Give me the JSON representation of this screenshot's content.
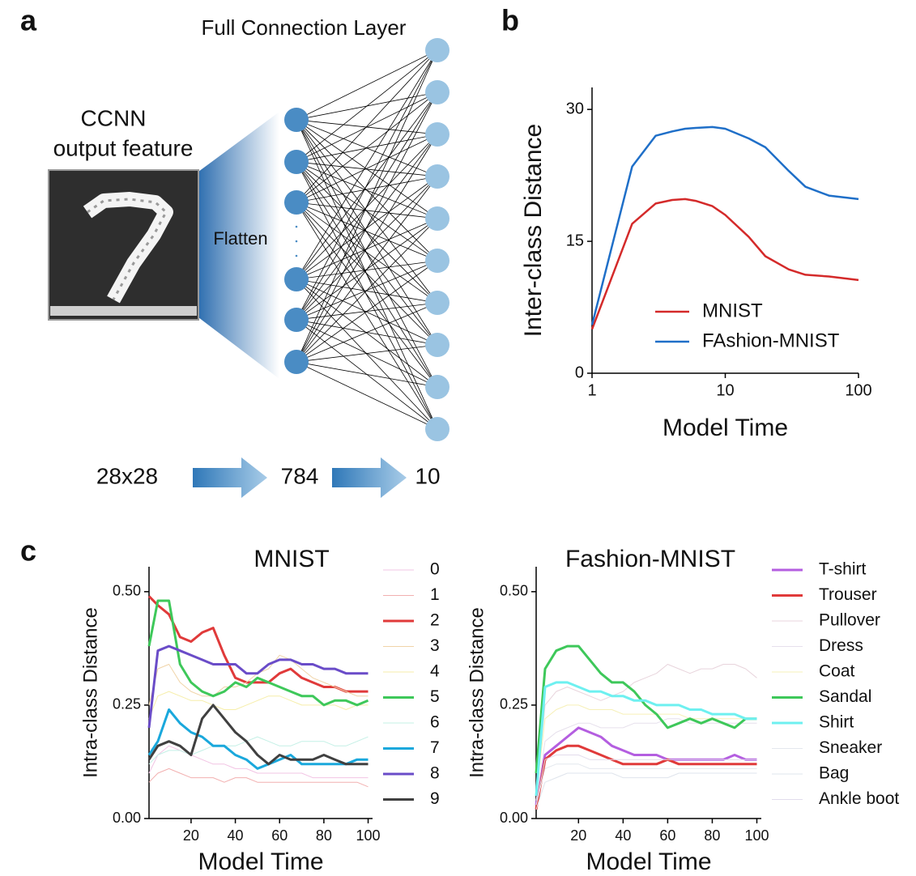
{
  "panels": [
    "a",
    "b",
    "c"
  ],
  "diagram": {
    "title": "Full Connection Layer",
    "input_label": [
      "CCNN",
      "output feature"
    ],
    "flatten": "Flatten",
    "sizes": [
      "28x28",
      "784",
      "10"
    ]
  },
  "chart_data": [
    {
      "type": "line",
      "xscale": "log",
      "x_label": "Model Time",
      "y_label": "Inter-class Distance",
      "legend": "lower right",
      "x": [
        1,
        2,
        3,
        4,
        5,
        6,
        8,
        10,
        15,
        20,
        30,
        40,
        60,
        100
      ],
      "xlim": [
        1,
        100
      ],
      "xticks": [
        1,
        10,
        100
      ],
      "ylim": [
        0,
        32.5
      ],
      "yticks": [
        0,
        15,
        30
      ],
      "series": [
        {
          "name": "MNIST",
          "color": "#d42a2a",
          "linewidth": 2.5,
          "values": [
            5,
            17,
            19.3,
            19.7,
            19.8,
            19.6,
            19,
            18,
            15.5,
            13.3,
            11.8,
            11.2,
            11,
            10.6
          ]
        },
        {
          "name": "FAshion-MNIST",
          "color": "#1f6fc8",
          "linewidth": 2.5,
          "values": [
            5.5,
            23.5,
            27,
            27.5,
            27.8,
            27.9,
            28,
            27.8,
            26.7,
            25.7,
            23,
            21.2,
            20.2,
            19.8
          ]
        }
      ]
    },
    {
      "type": "line",
      "title": "MNIST",
      "x_label": "Model Time",
      "y_label": "Intra-class Distance",
      "legend": "outside right",
      "x": [
        1,
        5,
        10,
        15,
        20,
        25,
        30,
        35,
        40,
        45,
        50,
        55,
        60,
        65,
        70,
        75,
        80,
        85,
        90,
        95,
        100
      ],
      "xlim": [
        1,
        102
      ],
      "xticks": [
        20,
        40,
        60,
        80,
        100
      ],
      "ylim": [
        0,
        0.555
      ],
      "yticks": [
        {
          "value": 0,
          "label": "0.00"
        },
        0.25,
        {
          "value": 0.5,
          "label": "0.50"
        }
      ],
      "series": [
        {
          "name": "0",
          "color": "#f2c4e4",
          "linewidth": 1,
          "values": [
            0.1,
            0.14,
            0.16,
            0.15,
            0.14,
            0.13,
            0.12,
            0.12,
            0.11,
            0.11,
            0.1,
            0.1,
            0.1,
            0.1,
            0.1,
            0.09,
            0.09,
            0.09,
            0.09,
            0.09,
            0.09
          ]
        },
        {
          "name": "1",
          "color": "#f2b0b0",
          "linewidth": 1,
          "values": [
            0.08,
            0.1,
            0.11,
            0.1,
            0.09,
            0.09,
            0.09,
            0.08,
            0.09,
            0.09,
            0.08,
            0.08,
            0.08,
            0.08,
            0.08,
            0.08,
            0.08,
            0.08,
            0.08,
            0.08,
            0.07
          ]
        },
        {
          "name": "2",
          "color": "#e03a3a",
          "linewidth": 3,
          "values": [
            0.49,
            0.47,
            0.45,
            0.4,
            0.39,
            0.41,
            0.42,
            0.36,
            0.31,
            0.3,
            0.3,
            0.3,
            0.32,
            0.33,
            0.31,
            0.3,
            0.29,
            0.29,
            0.28,
            0.28,
            0.28
          ]
        },
        {
          "name": "3",
          "color": "#f0d4a8",
          "linewidth": 1,
          "values": [
            0.25,
            0.33,
            0.34,
            0.3,
            0.28,
            0.27,
            0.27,
            0.29,
            0.29,
            0.3,
            0.32,
            0.33,
            0.36,
            0.35,
            0.33,
            0.31,
            0.3,
            0.29,
            0.28,
            0.27,
            0.27
          ]
        },
        {
          "name": "4",
          "color": "#f6eeaa",
          "linewidth": 1,
          "values": [
            0.22,
            0.27,
            0.28,
            0.27,
            0.26,
            0.26,
            0.25,
            0.24,
            0.24,
            0.25,
            0.26,
            0.27,
            0.27,
            0.26,
            0.25,
            0.25,
            0.25,
            0.25,
            0.24,
            0.25,
            0.25
          ]
        },
        {
          "name": "5",
          "color": "#3ec85a",
          "linewidth": 3,
          "values": [
            0.38,
            0.48,
            0.48,
            0.34,
            0.3,
            0.28,
            0.27,
            0.28,
            0.3,
            0.29,
            0.31,
            0.3,
            0.29,
            0.28,
            0.27,
            0.27,
            0.25,
            0.26,
            0.26,
            0.25,
            0.26
          ]
        },
        {
          "name": "6",
          "color": "#c4f0e6",
          "linewidth": 1,
          "values": [
            0.12,
            0.14,
            0.15,
            0.15,
            0.14,
            0.15,
            0.16,
            0.16,
            0.16,
            0.17,
            0.18,
            0.17,
            0.16,
            0.16,
            0.17,
            0.17,
            0.17,
            0.16,
            0.16,
            0.17,
            0.18
          ]
        },
        {
          "name": "7",
          "color": "#1aa8dc",
          "linewidth": 3,
          "values": [
            0.14,
            0.17,
            0.24,
            0.21,
            0.19,
            0.18,
            0.16,
            0.16,
            0.14,
            0.13,
            0.11,
            0.12,
            0.13,
            0.14,
            0.12,
            0.12,
            0.12,
            0.12,
            0.12,
            0.13,
            0.13
          ]
        },
        {
          "name": "8",
          "color": "#6a4cc8",
          "linewidth": 3,
          "values": [
            0.2,
            0.37,
            0.38,
            0.37,
            0.36,
            0.35,
            0.34,
            0.34,
            0.34,
            0.32,
            0.32,
            0.34,
            0.35,
            0.35,
            0.34,
            0.34,
            0.33,
            0.33,
            0.32,
            0.32,
            0.32
          ]
        },
        {
          "name": "9",
          "color": "#404040",
          "linewidth": 3,
          "values": [
            0.13,
            0.16,
            0.17,
            0.16,
            0.14,
            0.22,
            0.25,
            0.22,
            0.19,
            0.17,
            0.14,
            0.12,
            0.14,
            0.13,
            0.13,
            0.13,
            0.14,
            0.13,
            0.12,
            0.12,
            0.12
          ]
        }
      ]
    },
    {
      "type": "line",
      "title": "Fashion-MNIST",
      "x_label": "Model Time",
      "y_label": "Intra-class Distance",
      "legend": "outside right",
      "x": [
        1,
        5,
        10,
        15,
        20,
        25,
        30,
        35,
        40,
        45,
        50,
        55,
        60,
        65,
        70,
        75,
        80,
        85,
        90,
        95,
        100
      ],
      "xlim": [
        1,
        102
      ],
      "xticks": [
        20,
        40,
        60,
        80,
        100
      ],
      "ylim": [
        0,
        0.555
      ],
      "yticks": [
        {
          "value": 0,
          "label": "0.00"
        },
        0.25,
        {
          "value": 0.5,
          "label": "0.50"
        }
      ],
      "series": [
        {
          "name": "T-shirt",
          "color": "#b45ee0",
          "linewidth": 3,
          "values": [
            0.03,
            0.14,
            0.16,
            0.18,
            0.2,
            0.19,
            0.18,
            0.16,
            0.15,
            0.14,
            0.14,
            0.14,
            0.13,
            0.13,
            0.13,
            0.13,
            0.13,
            0.13,
            0.14,
            0.13,
            0.13
          ]
        },
        {
          "name": "Trouser",
          "color": "#e03a3a",
          "linewidth": 3,
          "values": [
            0.02,
            0.13,
            0.15,
            0.16,
            0.16,
            0.15,
            0.14,
            0.13,
            0.12,
            0.12,
            0.12,
            0.12,
            0.13,
            0.12,
            0.12,
            0.12,
            0.12,
            0.12,
            0.12,
            0.12,
            0.12
          ]
        },
        {
          "name": "Pullover",
          "color": "#e8d4dc",
          "linewidth": 1,
          "values": [
            0.05,
            0.25,
            0.28,
            0.29,
            0.28,
            0.27,
            0.26,
            0.27,
            0.28,
            0.3,
            0.31,
            0.32,
            0.34,
            0.33,
            0.32,
            0.33,
            0.33,
            0.34,
            0.34,
            0.33,
            0.31
          ]
        },
        {
          "name": "Dress",
          "color": "#e6e0ec",
          "linewidth": 1,
          "values": [
            0.04,
            0.17,
            0.19,
            0.2,
            0.21,
            0.21,
            0.2,
            0.2,
            0.2,
            0.21,
            0.21,
            0.21,
            0.22,
            0.22,
            0.21,
            0.21,
            0.21,
            0.21,
            0.21,
            0.21,
            0.21
          ]
        },
        {
          "name": "Coat",
          "color": "#f6f0b8",
          "linewidth": 1,
          "values": [
            0.05,
            0.22,
            0.24,
            0.25,
            0.25,
            0.24,
            0.24,
            0.24,
            0.23,
            0.23,
            0.23,
            0.23,
            0.23,
            0.23,
            0.22,
            0.22,
            0.22,
            0.22,
            0.22,
            0.22,
            0.22
          ]
        },
        {
          "name": "Sandal",
          "color": "#3ec85a",
          "linewidth": 3,
          "values": [
            0.1,
            0.33,
            0.37,
            0.38,
            0.38,
            0.35,
            0.32,
            0.3,
            0.3,
            0.28,
            0.25,
            0.23,
            0.2,
            0.21,
            0.22,
            0.21,
            0.22,
            0.21,
            0.2,
            0.22,
            0.22
          ]
        },
        {
          "name": "Shirt",
          "color": "#6ef0f0",
          "linewidth": 3,
          "values": [
            0.05,
            0.29,
            0.3,
            0.3,
            0.29,
            0.28,
            0.28,
            0.27,
            0.27,
            0.26,
            0.26,
            0.25,
            0.25,
            0.25,
            0.24,
            0.24,
            0.23,
            0.23,
            0.23,
            0.22,
            0.22
          ]
        },
        {
          "name": "Sneaker",
          "color": "#e4e8ee",
          "linewidth": 1,
          "values": [
            0.03,
            0.11,
            0.12,
            0.12,
            0.12,
            0.11,
            0.11,
            0.11,
            0.11,
            0.11,
            0.11,
            0.11,
            0.11,
            0.11,
            0.11,
            0.11,
            0.11,
            0.11,
            0.11,
            0.11,
            0.11
          ]
        },
        {
          "name": "Bag",
          "color": "#dfe4ec",
          "linewidth": 1,
          "values": [
            0.02,
            0.08,
            0.09,
            0.1,
            0.1,
            0.1,
            0.1,
            0.1,
            0.09,
            0.09,
            0.09,
            0.09,
            0.09,
            0.1,
            0.1,
            0.1,
            0.1,
            0.1,
            0.1,
            0.1,
            0.1
          ]
        },
        {
          "name": "Ankle boot",
          "color": "#e2dcec",
          "linewidth": 1,
          "values": [
            0.03,
            0.13,
            0.14,
            0.14,
            0.14,
            0.13,
            0.13,
            0.13,
            0.13,
            0.13,
            0.13,
            0.13,
            0.13,
            0.13,
            0.13,
            0.13,
            0.13,
            0.13,
            0.13,
            0.13,
            0.13
          ]
        }
      ]
    }
  ]
}
